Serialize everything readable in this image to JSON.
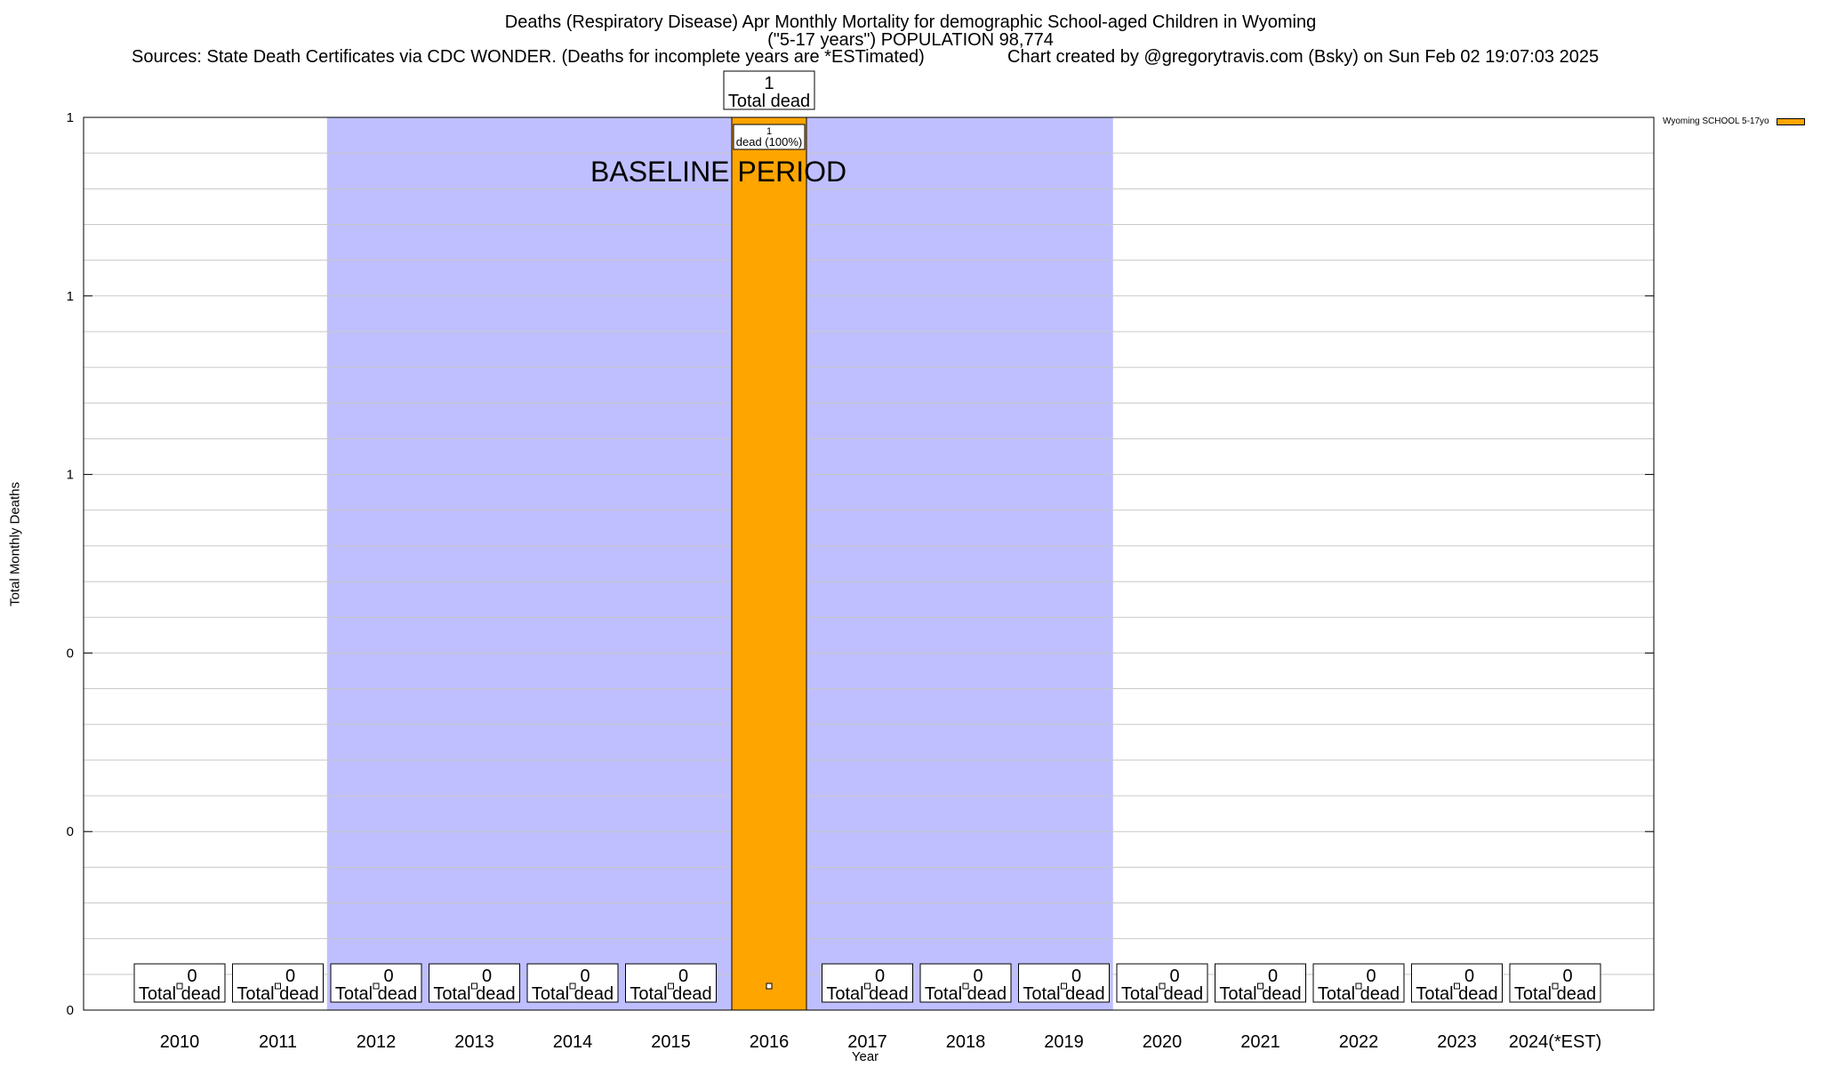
{
  "header": {
    "title_line1": "Deaths (Respiratory Disease) Apr Monthly Mortality for demographic School-aged Children in Wyoming",
    "title_line2": "(\"5-17 years\") POPULATION 98,774",
    "sources": "Sources: State Death Certificates via CDC WONDER. (Deaths for incomplete years are *ESTimated)",
    "credit": "Chart created by @gregorytravis.com (Bsky) on Sun Feb 02 19:07:03 2025"
  },
  "chart_data": {
    "type": "bar",
    "xlabel": "Year",
    "ylabel": "Total Monthly Deaths",
    "ylim": [
      0,
      1
    ],
    "ytick_labels": [
      "0",
      "0",
      "0",
      "1",
      "1",
      "1"
    ],
    "categories": [
      "2010",
      "2011",
      "2012",
      "2013",
      "2014",
      "2015",
      "2016",
      "2017",
      "2018",
      "2019",
      "2020",
      "2021",
      "2022",
      "2023",
      "2024(*EST)"
    ],
    "series": [
      {
        "name": "Wyoming SCHOOL 5-17yo",
        "color": "#FFA500",
        "values": [
          0,
          0,
          0,
          0,
          0,
          0,
          1,
          0,
          0,
          0,
          0,
          0,
          0,
          0,
          0
        ]
      }
    ],
    "total_labels": [
      "0",
      "0",
      "0",
      "0",
      "0",
      "0",
      "1",
      "0",
      "0",
      "0",
      "0",
      "0",
      "0",
      "0",
      "0"
    ],
    "total_label_suffix": "Total dead",
    "segment_label": {
      "index": 6,
      "count": "1",
      "text": "dead (100%)"
    },
    "baseline": {
      "label": "BASELINE PERIOD",
      "from": "2012",
      "to": "2019",
      "color": "#BFBFFF"
    },
    "grid": true,
    "legend_position": "top-right"
  }
}
